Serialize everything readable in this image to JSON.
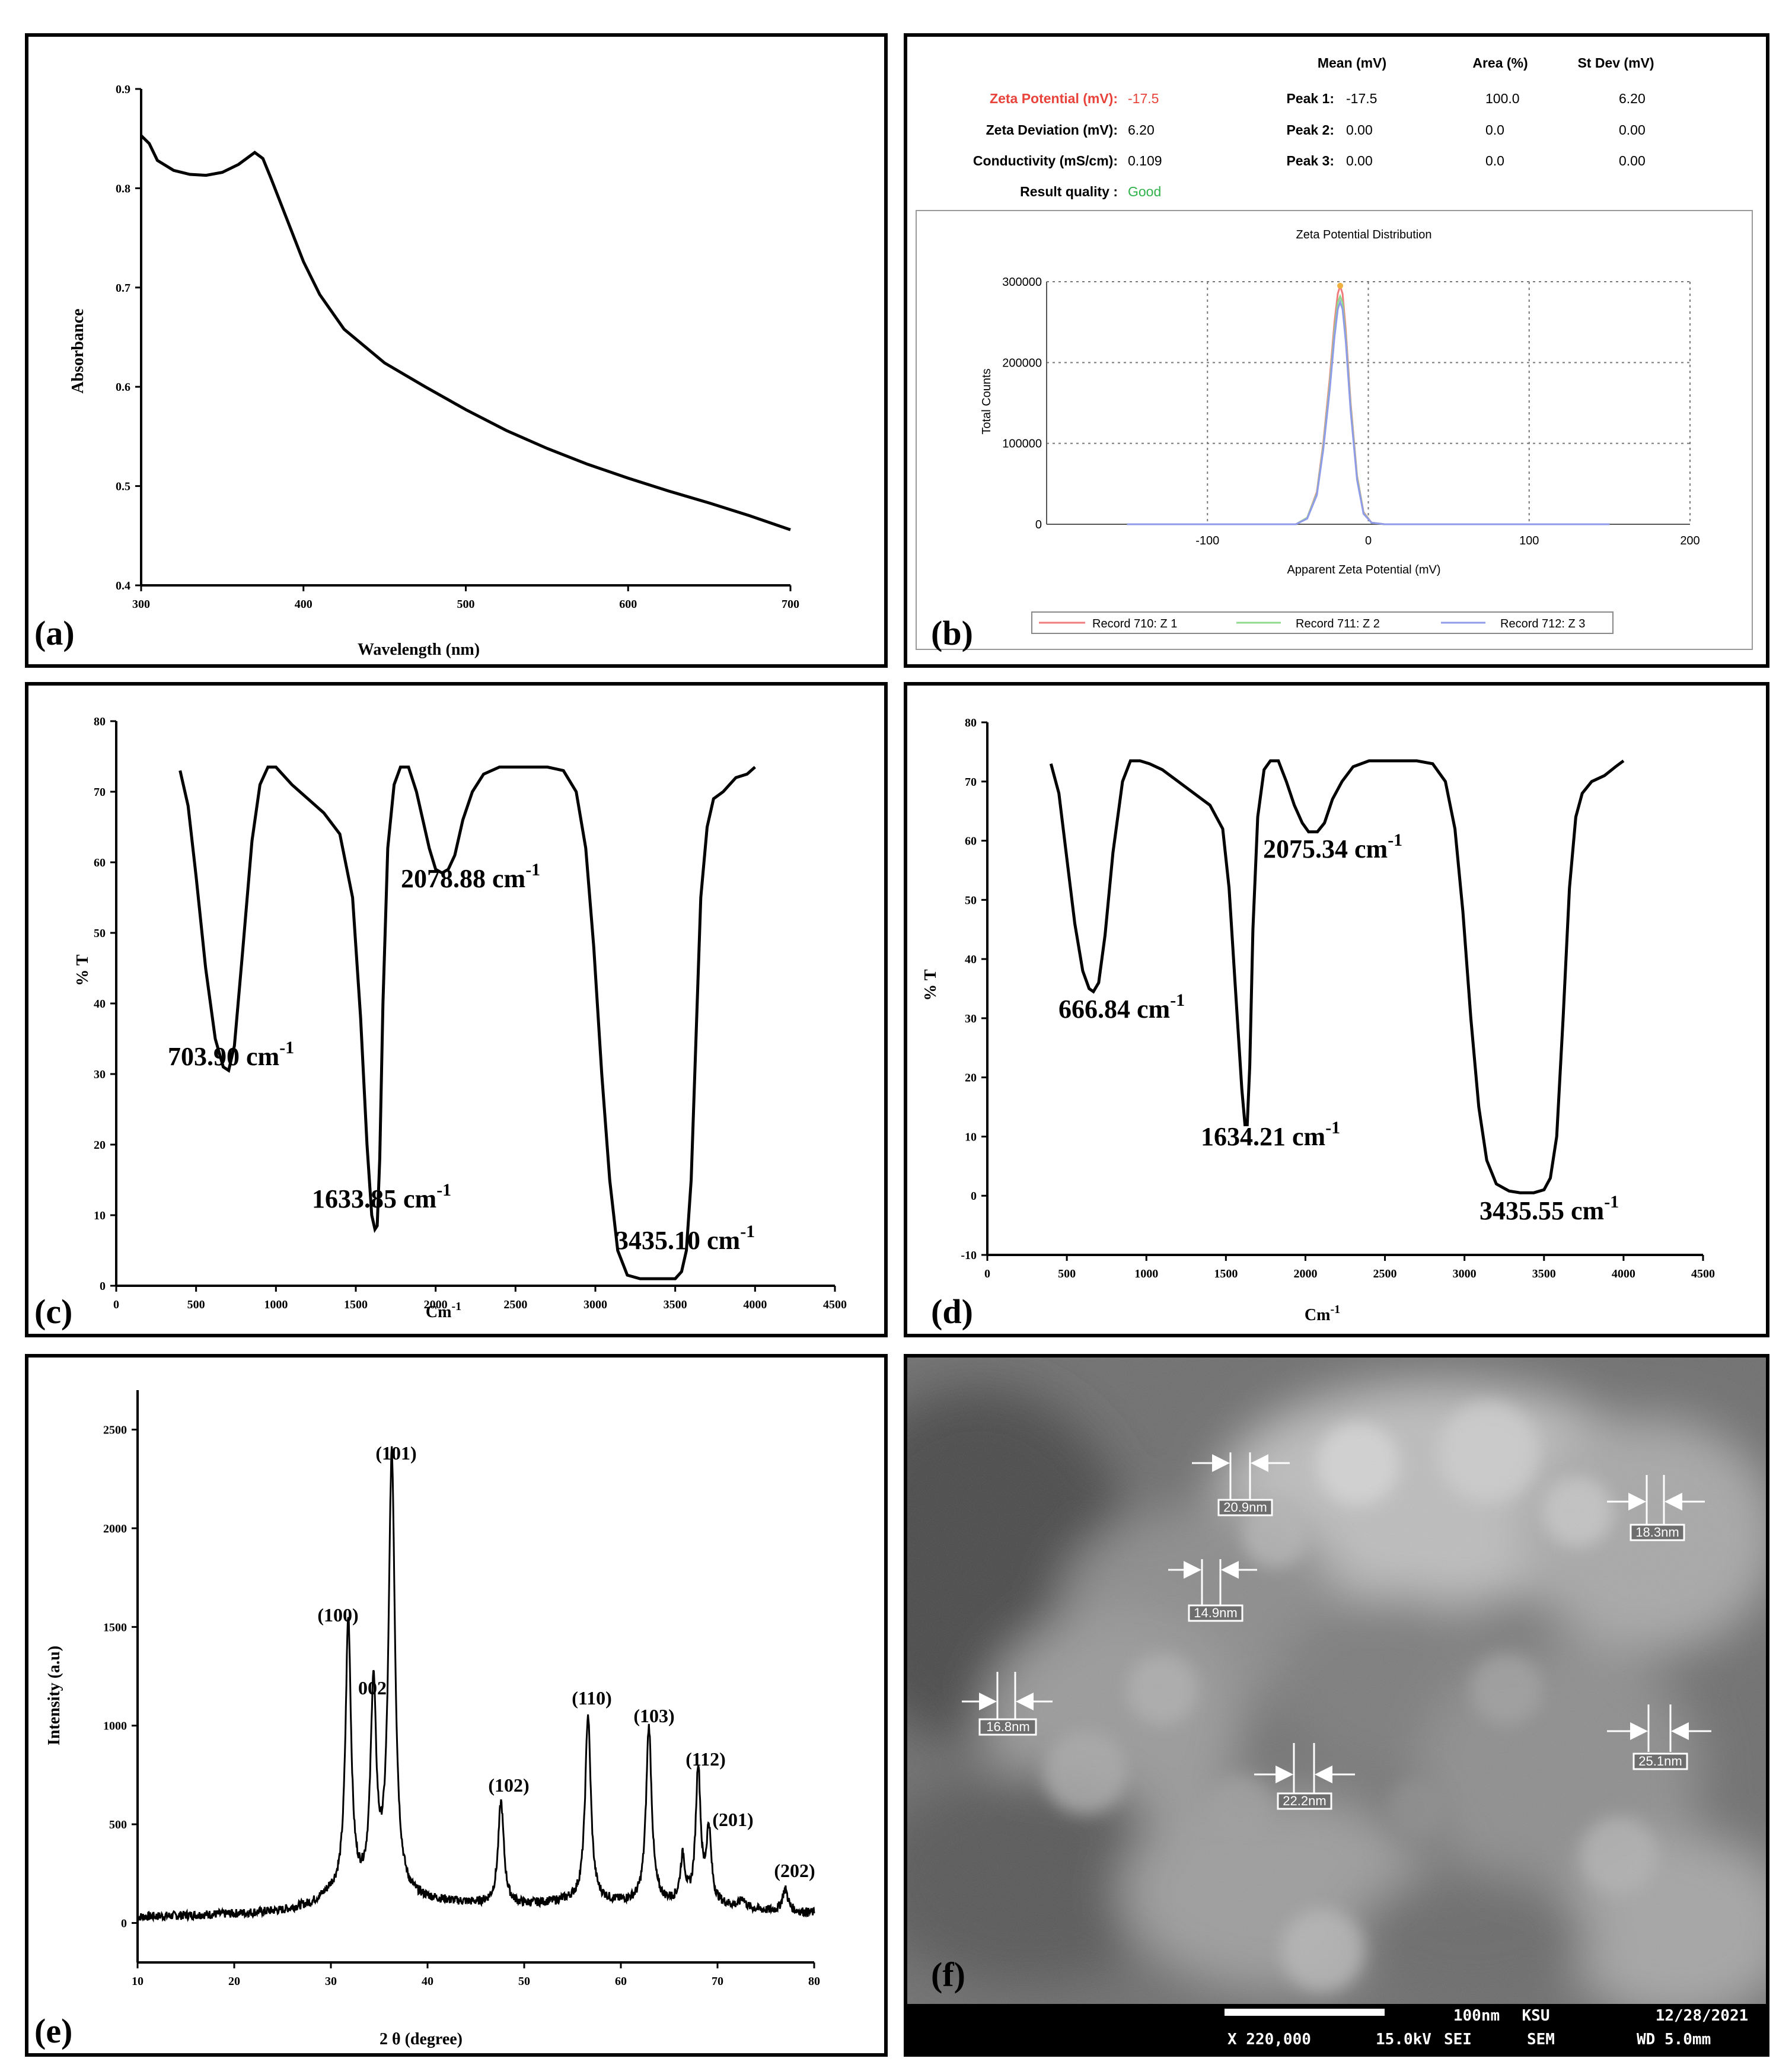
{
  "colors": {
    "red_label": "#e8423a",
    "good": "#2fb24a",
    "rec1": "#f07b7b",
    "rec2": "#8fd98f",
    "rec3": "#8f9be8",
    "peak_orange": "#f0b040"
  },
  "panel_a": {
    "label": "(a)",
    "chart_data": {
      "type": "line",
      "xlabel": "Wavelength (nm)",
      "ylabel": "Absorbance",
      "xlim": [
        300,
        700
      ],
      "ylim": [
        0.4,
        0.9
      ],
      "xticks": [
        "300",
        "400",
        "500",
        "600",
        "700"
      ],
      "yticks": [
        "0.4",
        "0.5",
        "0.6",
        "0.7",
        "0.8",
        "0.9"
      ],
      "x": [
        300,
        305,
        310,
        320,
        330,
        340,
        350,
        360,
        365,
        370,
        375,
        380,
        390,
        400,
        410,
        425,
        450,
        475,
        500,
        525,
        550,
        575,
        600,
        625,
        650,
        675,
        700
      ],
      "y": [
        0.853,
        0.845,
        0.828,
        0.818,
        0.814,
        0.813,
        0.816,
        0.824,
        0.83,
        0.836,
        0.83,
        0.81,
        0.768,
        0.726,
        0.693,
        0.658,
        0.624,
        0.6,
        0.577,
        0.556,
        0.538,
        0.522,
        0.508,
        0.495,
        0.483,
        0.47,
        0.456
      ]
    }
  },
  "panel_b": {
    "label": "(b)",
    "headers": {
      "mean": "Mean (mV)",
      "area": "Area (%)",
      "stdev": "St Dev (mV)"
    },
    "left_rows": [
      {
        "label": "Zeta Potential (mV):",
        "value": "-17.5"
      },
      {
        "label": "Zeta Deviation (mV):",
        "value": "6.20"
      },
      {
        "label": "Conductivity (mS/cm):",
        "value": "0.109"
      },
      {
        "label": "Result quality :",
        "value": "Good"
      }
    ],
    "peaks": [
      {
        "label": "Peak 1:",
        "mean": "-17.5",
        "area": "100.0",
        "stdev": "6.20"
      },
      {
        "label": "Peak 2:",
        "mean": "0.00",
        "area": "0.0",
        "stdev": "0.00"
      },
      {
        "label": "Peak 3:",
        "mean": "0.00",
        "area": "0.0",
        "stdev": "0.00"
      }
    ],
    "chart_data": {
      "type": "line",
      "title": "Zeta Potential Distribution",
      "xlabel": "Apparent Zeta Potential (mV)",
      "ylabel": "Total Counts",
      "xlim": [
        -200,
        200
      ],
      "ylim": [
        0,
        300000
      ],
      "xticks": [
        "-100",
        "0",
        "100",
        "200"
      ],
      "yticks": [
        "0",
        "100000",
        "200000",
        "300000"
      ],
      "series": [
        {
          "name": "Record 710: Z 1",
          "x": [
            -150,
            -45,
            -38,
            -32,
            -28,
            -24,
            -21,
            -19,
            -17.5,
            -16,
            -14,
            -11,
            -7,
            -3,
            2,
            10,
            150
          ],
          "y": [
            0,
            0,
            8000,
            40000,
            100000,
            180000,
            250000,
            285000,
            295000,
            285000,
            240000,
            150000,
            60000,
            15000,
            2000,
            0,
            0
          ]
        },
        {
          "name": "Record 711: Z 2",
          "x": [
            -150,
            -45,
            -38,
            -32,
            -28,
            -24,
            -21,
            -19,
            -17.5,
            -16,
            -14,
            -11,
            -7,
            -3,
            2,
            10,
            150
          ],
          "y": [
            0,
            0,
            8000,
            38000,
            96000,
            172000,
            240000,
            274000,
            282000,
            274000,
            232000,
            145000,
            58000,
            14000,
            2000,
            0,
            0
          ]
        },
        {
          "name": "Record 712: Z 3",
          "x": [
            -150,
            -45,
            -38,
            -32,
            -28,
            -24,
            -21,
            -19,
            -17.5,
            -16,
            -14,
            -11,
            -7,
            -3,
            2,
            10,
            150
          ],
          "y": [
            0,
            0,
            7000,
            36000,
            92000,
            166000,
            232000,
            266000,
            275000,
            266000,
            226000,
            140000,
            55000,
            13000,
            2000,
            0,
            0
          ]
        }
      ]
    }
  },
  "panel_c": {
    "label": "(c)",
    "chart_data": {
      "type": "line",
      "xlabel": "Cm",
      "xlabel_sup": "-1",
      "ylabel": "% T",
      "xlim": [
        0,
        4500
      ],
      "ylim": [
        0,
        80
      ],
      "xticks": [
        "0",
        "500",
        "1000",
        "1500",
        "2000",
        "2500",
        "3000",
        "3500",
        "4000",
        "4500"
      ],
      "yticks": [
        "0",
        "10",
        "20",
        "30",
        "40",
        "50",
        "60",
        "70",
        "80"
      ],
      "x": [
        400,
        450,
        500,
        560,
        620,
        670,
        704,
        740,
        790,
        850,
        900,
        950,
        1000,
        1100,
        1200,
        1300,
        1400,
        1480,
        1530,
        1570,
        1600,
        1620,
        1634,
        1650,
        1670,
        1700,
        1740,
        1780,
        1830,
        1880,
        1920,
        1960,
        2000,
        2040,
        2079,
        2120,
        2170,
        2230,
        2300,
        2400,
        2500,
        2600,
        2700,
        2800,
        2880,
        2940,
        2990,
        3040,
        3090,
        3140,
        3200,
        3280,
        3350,
        3435,
        3500,
        3540,
        3570,
        3600,
        3630,
        3660,
        3700,
        3740,
        3800,
        3880,
        3950,
        4000
      ],
      "y": [
        73,
        68,
        58,
        45,
        35,
        31,
        30.5,
        34,
        47,
        63,
        71,
        73.5,
        73.5,
        71,
        69,
        67,
        64,
        55,
        38,
        20,
        10,
        8,
        8.5,
        18,
        40,
        62,
        71,
        73.5,
        73.5,
        70,
        66,
        62,
        59,
        58.5,
        59,
        61,
        66,
        70,
        72.5,
        73.5,
        73.5,
        73.5,
        73.5,
        73,
        70,
        62,
        48,
        30,
        15,
        5,
        1.5,
        1,
        1,
        1,
        1,
        2,
        5,
        15,
        35,
        55,
        65,
        69,
        70,
        72,
        72.5,
        73.5
      ]
    },
    "annotations": [
      {
        "text": "703.90 cm",
        "sup": "-1"
      },
      {
        "text": "1633.85 cm",
        "sup": "-1"
      },
      {
        "text": "2078.88 cm",
        "sup": "-1"
      },
      {
        "text": "3435.10 cm",
        "sup": "-1"
      }
    ]
  },
  "panel_d": {
    "label": "(d)",
    "chart_data": {
      "type": "line",
      "xlabel": "Cm",
      "xlabel_sup": "-1",
      "ylabel": "% T",
      "xlim": [
        0,
        4500
      ],
      "ylim": [
        -10,
        80
      ],
      "xticks": [
        "0",
        "500",
        "1000",
        "1500",
        "2000",
        "2500",
        "3000",
        "3500",
        "4000",
        "4500"
      ],
      "yticks": [
        "-10",
        "0",
        "10",
        "20",
        "30",
        "40",
        "50",
        "60",
        "70",
        "80"
      ],
      "x": [
        400,
        450,
        500,
        550,
        600,
        640,
        667,
        700,
        740,
        790,
        850,
        900,
        960,
        1020,
        1100,
        1200,
        1300,
        1400,
        1480,
        1520,
        1560,
        1600,
        1620,
        1634,
        1650,
        1670,
        1700,
        1740,
        1780,
        1830,
        1880,
        1930,
        1980,
        2020,
        2075,
        2120,
        2170,
        2230,
        2300,
        2400,
        2500,
        2600,
        2700,
        2800,
        2880,
        2940,
        2990,
        3040,
        3090,
        3140,
        3200,
        3280,
        3350,
        3436,
        3500,
        3540,
        3580,
        3620,
        3660,
        3700,
        3740,
        3800,
        3880,
        3950,
        4000
      ],
      "y": [
        73,
        68,
        57,
        46,
        38,
        35,
        34.5,
        36,
        44,
        58,
        70,
        73.5,
        73.5,
        73,
        72,
        70,
        68,
        66,
        62,
        52,
        35,
        18,
        12,
        12,
        22,
        45,
        64,
        72,
        73.5,
        73.5,
        70,
        66,
        63,
        61.5,
        61.5,
        63,
        67,
        70,
        72.5,
        73.5,
        73.5,
        73.5,
        73.5,
        73,
        70,
        62,
        48,
        30,
        15,
        6,
        2,
        0.8,
        0.5,
        0.5,
        1,
        3,
        10,
        30,
        52,
        64,
        68,
        70,
        71,
        72.5,
        73.5
      ]
    },
    "annotations": [
      {
        "text": "666.84 cm",
        "sup": "-1"
      },
      {
        "text": "1634.21 cm",
        "sup": "-1"
      },
      {
        "text": "2075.34 cm",
        "sup": "-1"
      },
      {
        "text": "3435.55 cm",
        "sup": "-1"
      }
    ]
  },
  "panel_e": {
    "label": "(e)",
    "chart_data": {
      "type": "line",
      "xlabel": "2 θ (degree)",
      "ylabel": "Intensity (a.u)",
      "xlim": [
        10,
        80
      ],
      "ylim": [
        -200,
        2700
      ],
      "xticks": [
        "10",
        "20",
        "30",
        "40",
        "50",
        "60",
        "70",
        "80"
      ],
      "yticks": [
        "0",
        "500",
        "1000",
        "1500",
        "2000",
        "2500"
      ],
      "baseline": [
        [
          10,
          30
        ],
        [
          20,
          45
        ],
        [
          25,
          60
        ],
        [
          28,
          90
        ],
        [
          30,
          140
        ],
        [
          40,
          110
        ],
        [
          45,
          95
        ],
        [
          50,
          90
        ],
        [
          55,
          110
        ],
        [
          60,
          100
        ],
        [
          65,
          95
        ],
        [
          70,
          90
        ],
        [
          75,
          60
        ],
        [
          80,
          50
        ]
      ],
      "peaks": [
        {
          "x": 31.8,
          "y": 1520,
          "w": 0.35
        },
        {
          "x": 34.4,
          "y": 1160,
          "w": 0.35
        },
        {
          "x": 36.3,
          "y": 2350,
          "w": 0.4
        },
        {
          "x": 47.6,
          "y": 610,
          "w": 0.35
        },
        {
          "x": 56.6,
          "y": 1050,
          "w": 0.35
        },
        {
          "x": 62.9,
          "y": 990,
          "w": 0.35
        },
        {
          "x": 66.4,
          "y": 320,
          "w": 0.3
        },
        {
          "x": 68.0,
          "y": 780,
          "w": 0.3
        },
        {
          "x": 69.1,
          "y": 460,
          "w": 0.3
        },
        {
          "x": 72.6,
          "y": 120,
          "w": 0.3
        },
        {
          "x": 77.0,
          "y": 170,
          "w": 0.35
        }
      ],
      "hkl_labels": [
        "(100)",
        "002",
        "(101)",
        "(102)",
        "(110)",
        "(103)",
        "(112)",
        "(201)",
        "(202)"
      ]
    }
  },
  "panel_f": {
    "label": "(f)",
    "measurements": [
      "20.9nm",
      "14.9nm",
      "18.3nm",
      "16.8nm",
      "22.2nm",
      "25.1nm"
    ],
    "footer": {
      "scale": "100nm",
      "lab": "KSU",
      "date": "12/28/2021",
      "mag": "X 220,000",
      "kv": "15.0kV",
      "det": "SEI",
      "mode": "SEM",
      "wd": "WD 5.0mm"
    }
  }
}
